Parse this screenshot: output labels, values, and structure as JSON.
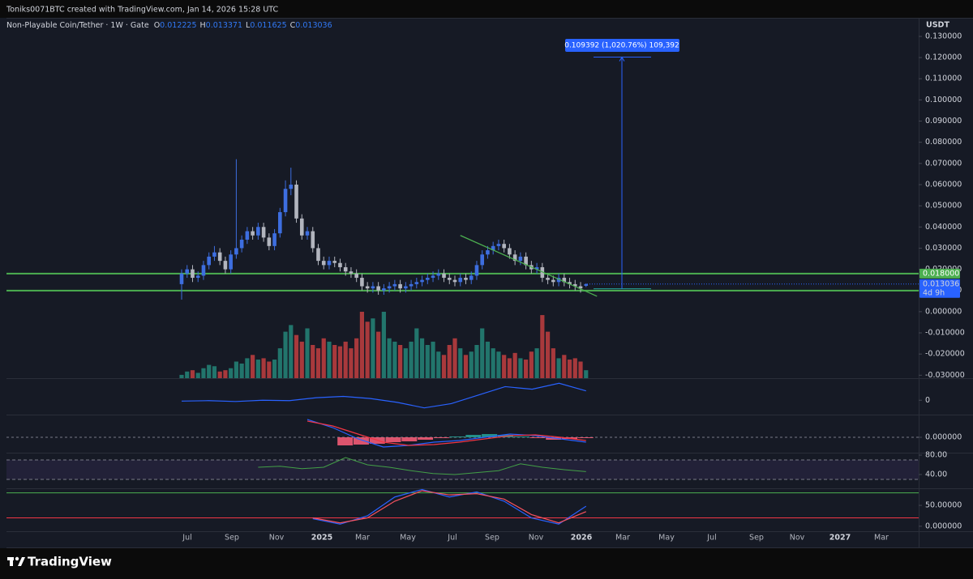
{
  "header": {
    "text": "Toniks0071BTC created with TradingView.com, Jan 14, 2026 15:28 UTC"
  },
  "legend": {
    "symbol": "Non-Playable Coin/Tether · 1W · Gate",
    "ohlc": [
      {
        "label": "O",
        "value": "0.012225"
      },
      {
        "label": "H",
        "value": "0.013371"
      },
      {
        "label": "L",
        "value": "0.011625"
      },
      {
        "label": "C",
        "value": "0.013036"
      }
    ]
  },
  "axis_currency": "USDT",
  "footer": {
    "logo": "TradingView"
  },
  "chart_data": {
    "type": "candlestick",
    "up_color": "#3d6ee0",
    "down_color": "#b2b5be",
    "volume_up_color": "#22756c",
    "volume_down_color": "#a8393c",
    "open": [
      0.013,
      0.018,
      0.02,
      0.016,
      0.017,
      0.022,
      0.026,
      0.028,
      0.024,
      0.02,
      0.027,
      0.03,
      0.034,
      0.038,
      0.036,
      0.04,
      0.035,
      0.031,
      0.037,
      0.047,
      0.058,
      0.06,
      0.044,
      0.036,
      0.038,
      0.03,
      0.024,
      0.022,
      0.024,
      0.023,
      0.021,
      0.019,
      0.018,
      0.016,
      0.012,
      0.011,
      0.012,
      0.01,
      0.011,
      0.012,
      0.013,
      0.011,
      0.012,
      0.013,
      0.014,
      0.015,
      0.016,
      0.017,
      0.018,
      0.016,
      0.015,
      0.014,
      0.016,
      0.015,
      0.017,
      0.022,
      0.027,
      0.029,
      0.031,
      0.032,
      0.03,
      0.027,
      0.024,
      0.026,
      0.022,
      0.02,
      0.021,
      0.016,
      0.015,
      0.014,
      0.016,
      0.014,
      0.013,
      0.012,
      0.012225
    ],
    "high": [
      0.02,
      0.022,
      0.022,
      0.019,
      0.024,
      0.028,
      0.031,
      0.03,
      0.026,
      0.029,
      0.072,
      0.036,
      0.04,
      0.04,
      0.042,
      0.042,
      0.037,
      0.039,
      0.049,
      0.062,
      0.068,
      0.062,
      0.046,
      0.04,
      0.04,
      0.032,
      0.026,
      0.026,
      0.026,
      0.025,
      0.023,
      0.021,
      0.02,
      0.018,
      0.014,
      0.014,
      0.014,
      0.013,
      0.014,
      0.015,
      0.015,
      0.014,
      0.015,
      0.016,
      0.017,
      0.018,
      0.019,
      0.02,
      0.02,
      0.018,
      0.017,
      0.018,
      0.018,
      0.019,
      0.024,
      0.029,
      0.031,
      0.033,
      0.034,
      0.034,
      0.032,
      0.029,
      0.028,
      0.028,
      0.024,
      0.023,
      0.023,
      0.018,
      0.017,
      0.018,
      0.018,
      0.016,
      0.015,
      0.014,
      0.013371
    ],
    "low": [
      0.0057,
      0.016,
      0.014,
      0.014,
      0.015,
      0.02,
      0.024,
      0.022,
      0.018,
      0.018,
      0.025,
      0.028,
      0.032,
      0.034,
      0.034,
      0.033,
      0.029,
      0.029,
      0.035,
      0.045,
      0.055,
      0.042,
      0.034,
      0.034,
      0.028,
      0.022,
      0.02,
      0.02,
      0.021,
      0.019,
      0.017,
      0.016,
      0.014,
      0.01,
      0.009,
      0.009,
      0.008,
      0.008,
      0.009,
      0.01,
      0.009,
      0.009,
      0.01,
      0.011,
      0.012,
      0.013,
      0.014,
      0.015,
      0.014,
      0.013,
      0.012,
      0.012,
      0.013,
      0.013,
      0.015,
      0.02,
      0.025,
      0.027,
      0.029,
      0.028,
      0.025,
      0.022,
      0.022,
      0.02,
      0.018,
      0.018,
      0.014,
      0.013,
      0.012,
      0.012,
      0.012,
      0.011,
      0.01,
      0.009,
      0.011625
    ],
    "close": [
      0.018,
      0.02,
      0.016,
      0.017,
      0.022,
      0.026,
      0.028,
      0.024,
      0.02,
      0.027,
      0.03,
      0.034,
      0.038,
      0.036,
      0.04,
      0.035,
      0.031,
      0.037,
      0.047,
      0.058,
      0.06,
      0.044,
      0.036,
      0.038,
      0.03,
      0.024,
      0.022,
      0.024,
      0.023,
      0.021,
      0.019,
      0.018,
      0.016,
      0.012,
      0.011,
      0.012,
      0.01,
      0.011,
      0.012,
      0.013,
      0.011,
      0.012,
      0.013,
      0.014,
      0.015,
      0.016,
      0.017,
      0.018,
      0.016,
      0.015,
      0.014,
      0.016,
      0.015,
      0.017,
      0.022,
      0.027,
      0.029,
      0.031,
      0.032,
      0.03,
      0.027,
      0.024,
      0.026,
      0.022,
      0.02,
      0.021,
      0.016,
      0.015,
      0.014,
      0.016,
      0.014,
      0.013,
      0.012,
      0.011,
      0.013036
    ],
    "volume": [
      5,
      10,
      12,
      8,
      15,
      20,
      18,
      10,
      12,
      15,
      25,
      22,
      30,
      35,
      28,
      30,
      25,
      28,
      45,
      70,
      80,
      65,
      55,
      75,
      50,
      45,
      60,
      55,
      50,
      48,
      55,
      45,
      60,
      100,
      85,
      90,
      70,
      100,
      60,
      55,
      50,
      45,
      55,
      75,
      60,
      50,
      55,
      40,
      35,
      50,
      60,
      45,
      35,
      40,
      50,
      75,
      55,
      45,
      40,
      35,
      30,
      38,
      30,
      28,
      40,
      45,
      95,
      70,
      45,
      30,
      35,
      28,
      30,
      25,
      12
    ],
    "ylim": [
      -0.0314,
      0.1403
    ],
    "yticks": [
      {
        "value": 0.13,
        "label": "0.130000"
      },
      {
        "value": 0.12,
        "label": "0.120000"
      },
      {
        "value": 0.11,
        "label": "0.110000"
      },
      {
        "value": 0.1,
        "label": "0.100000"
      },
      {
        "value": 0.09,
        "label": "0.090000"
      },
      {
        "value": 0.08,
        "label": "0.080000"
      },
      {
        "value": 0.07,
        "label": "0.070000"
      },
      {
        "value": 0.06,
        "label": "0.060000"
      },
      {
        "value": 0.05,
        "label": "0.050000"
      },
      {
        "value": 0.04,
        "label": "0.040000"
      },
      {
        "value": 0.03,
        "label": "0.030000"
      },
      {
        "value": 0.02,
        "label": "0.020000"
      },
      {
        "value": 0.01,
        "label": "0.010000"
      },
      {
        "value": 0,
        "label": "0.000000"
      },
      {
        "value": -0.01,
        "label": "-0.010000"
      },
      {
        "value": -0.02,
        "label": "-0.020000"
      },
      {
        "value": -0.03,
        "label": "-0.030000"
      }
    ],
    "xticks": [
      "Jul",
      "Sep",
      "Nov",
      "2025",
      "Mar",
      "May",
      "Jul",
      "Sep",
      "Nov",
      "2026",
      "Mar",
      "May",
      "Jul",
      "Sep",
      "Nov",
      "2027",
      "Mar"
    ],
    "levels": [
      {
        "value": 0.018,
        "label": "0.018000",
        "color": "#4caf50"
      },
      {
        "value": 0.009964,
        "label": "0.009964",
        "color": "#4caf50"
      }
    ],
    "last_price": {
      "value": 0.013036,
      "label": "0.013036",
      "countdown": "4d 9h",
      "color": "#2962ff"
    },
    "trendline": {
      "from": [
        51,
        0.036
      ],
      "to": [
        76,
        0.0073
      ],
      "color": "#4caf50"
    },
    "measure": {
      "from": 0.0108,
      "to": 0.1202,
      "label": "0.109392 (1,020.76%) 109,392",
      "color": "#2962ff"
    },
    "obv": {
      "values": [
        -2,
        -1,
        -3,
        0,
        -1,
        6,
        9,
        4,
        -5,
        -18,
        -8,
        12,
        32,
        26,
        40,
        22
      ],
      "ylim": [
        -30,
        50
      ],
      "yticks": [
        0
      ],
      "color": "#2962ff"
    },
    "macd": {
      "macd": [
        22,
        12,
        -2,
        -12,
        -10,
        -6,
        -4,
        0,
        4,
        2,
        -2,
        -6
      ],
      "signal": [
        20,
        14,
        4,
        -6,
        -10,
        -9,
        -6,
        -2,
        2,
        3,
        0,
        -4
      ],
      "hist": [
        -10,
        -9,
        -8,
        -6,
        -5,
        -3,
        -1,
        1,
        3,
        4,
        3,
        1,
        -1,
        -3,
        -2,
        -1
      ],
      "ylim": [
        -18,
        25
      ],
      "yticks": [
        {
          "value": 0,
          "label": "0.000000"
        }
      ],
      "macd_color": "#2962ff",
      "signal_color": "#f23645",
      "hist_up_color": "#26a69a",
      "hist_down_color": "#ff5f7a"
    },
    "rsi": {
      "values": [
        55,
        57,
        52,
        55,
        75,
        60,
        55,
        48,
        42,
        40,
        44,
        48,
        62,
        55,
        50,
        46
      ],
      "ylim": [
        15,
        80
      ],
      "yticks": [
        {
          "value": 80,
          "label": "80.00"
        },
        {
          "value": 40,
          "label": "40.00"
        }
      ],
      "band": [
        30,
        70
      ],
      "color": "#43a047"
    },
    "stoch": {
      "k": [
        18,
        5,
        25,
        70,
        88,
        70,
        82,
        60,
        20,
        5,
        48
      ],
      "d": [
        20,
        8,
        20,
        60,
        85,
        75,
        78,
        65,
        28,
        8,
        35
      ],
      "ylim": [
        -10,
        85
      ],
      "yticks": [
        {
          "value": 50,
          "label": "50.00000"
        },
        {
          "value": 0,
          "label": "0.000000"
        }
      ],
      "band": [
        20,
        80
      ],
      "k_color": "#2962ff",
      "d_color": "#f7525f",
      "upper_color": "#4caf50",
      "lower_color": "#f23645"
    }
  }
}
